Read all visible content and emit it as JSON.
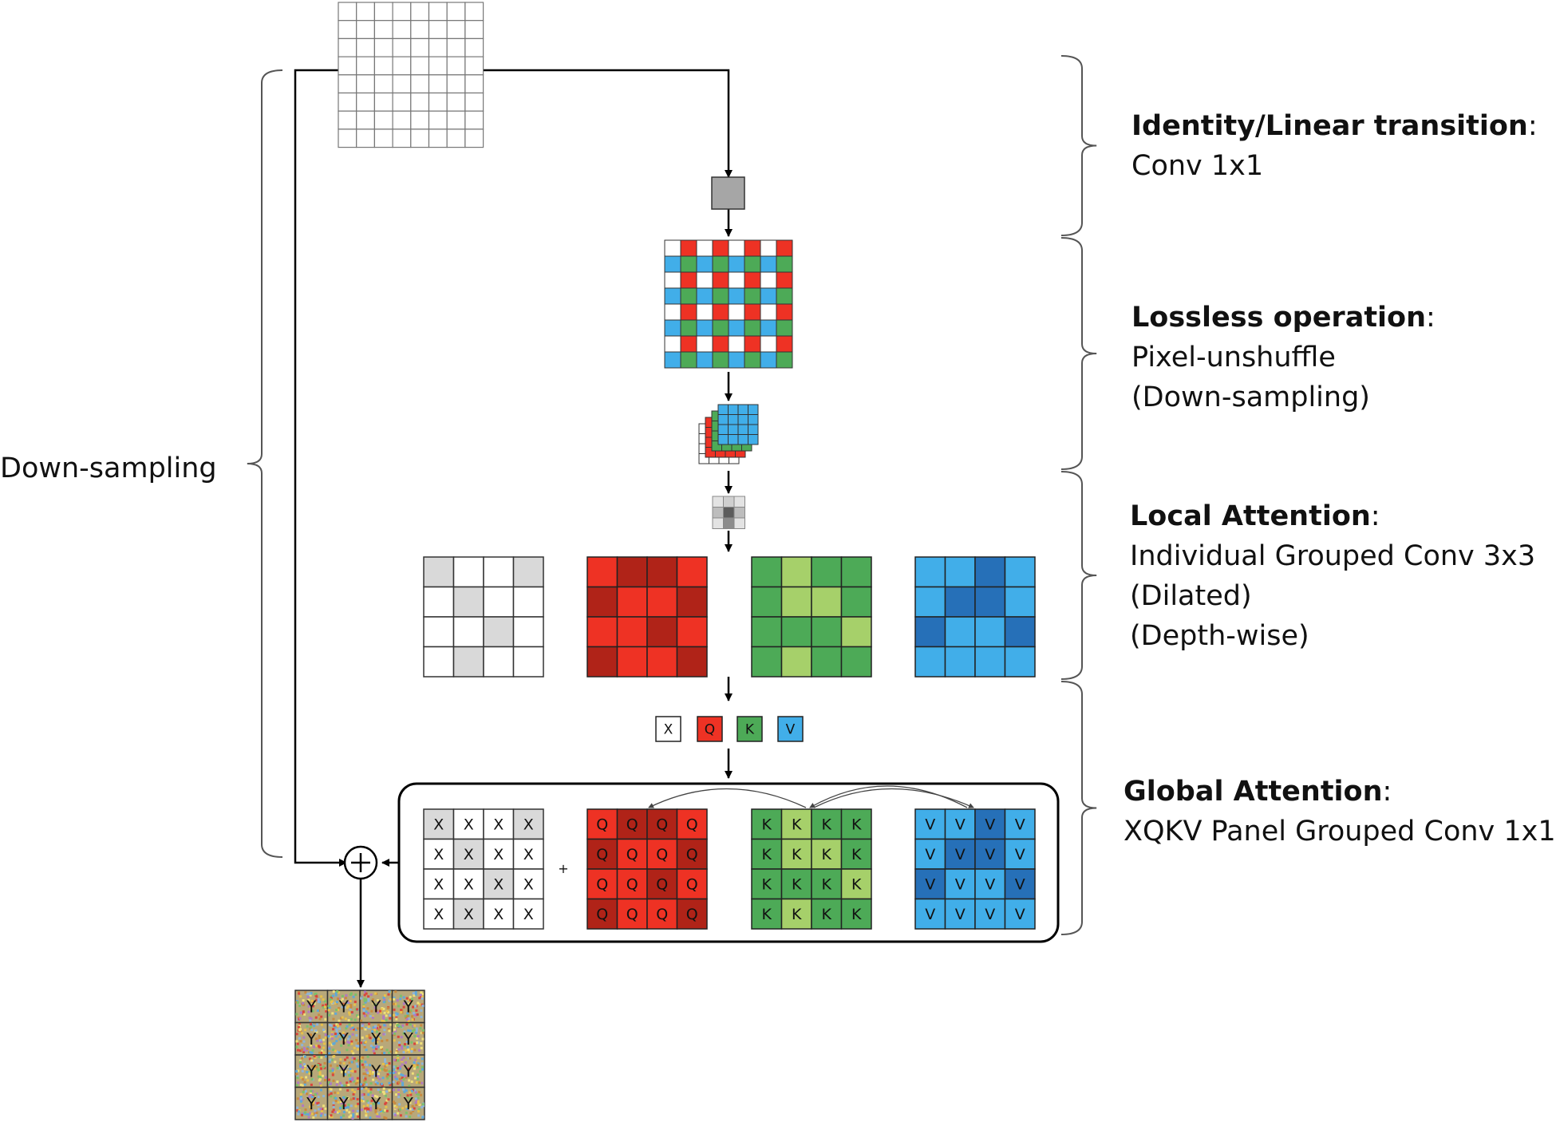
{
  "left_label": "Down-sampling",
  "stages": [
    {
      "title": "Identity/Linear transition",
      "colon": ":",
      "lines": [
        "Conv 1x1"
      ]
    },
    {
      "title": "Lossless operation",
      "colon": ":",
      "lines": [
        "Pixel-unshuffle",
        "(Down-sampling)"
      ]
    },
    {
      "title": "Local Attention",
      "colon": ":",
      "lines": [
        "Individual Grouped Conv 3x3",
        "(Dilated)",
        "(Depth-wise)"
      ]
    },
    {
      "title": "Global Attention",
      "colon": ":",
      "lines": [
        "XQKV Panel Grouped Conv 1x1"
      ]
    }
  ],
  "tokens": {
    "x": "X",
    "q": "Q",
    "k": "K",
    "v": "V",
    "y": "Y"
  },
  "plus_small": "+",
  "colors": {
    "red": "#ee3224",
    "red_dark": "#b02318",
    "green": "#4daa57",
    "green_light": "#a6d06a",
    "blue": "#41aee9",
    "blue_dark": "#2670b8",
    "gray": "#d9d9d9",
    "conv_gray": "#a6a6a6"
  }
}
